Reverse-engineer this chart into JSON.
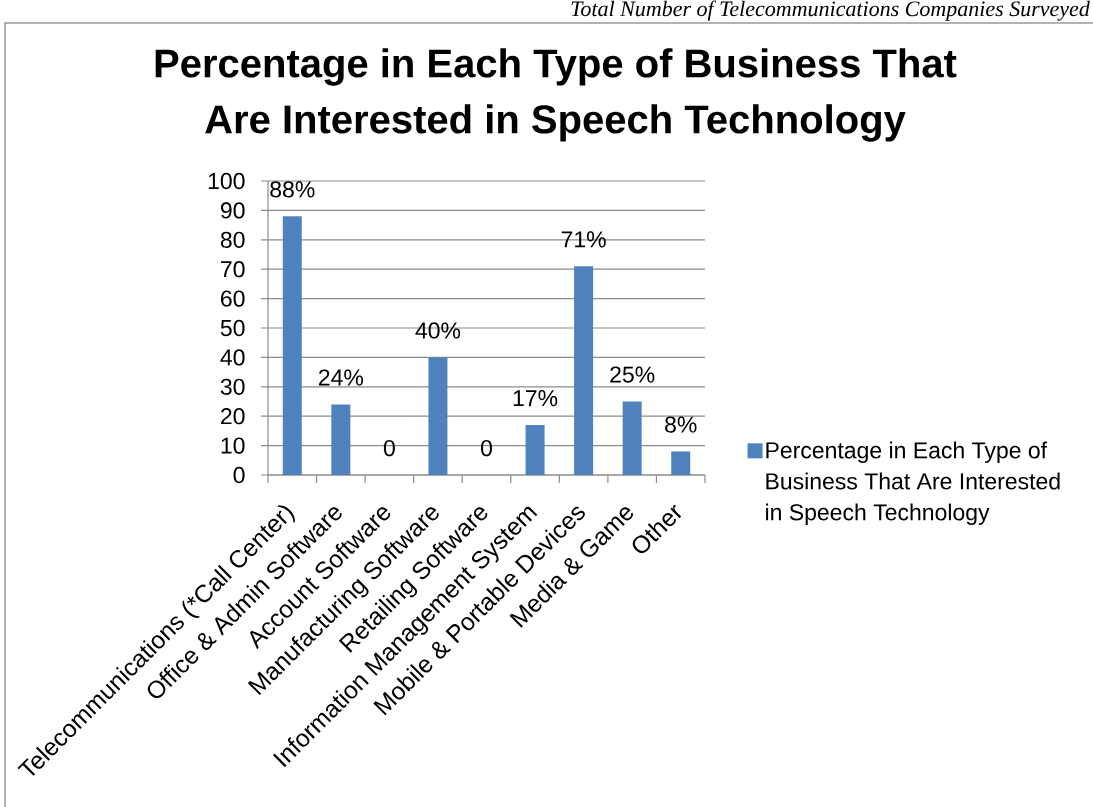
{
  "chart_data": {
    "type": "bar",
    "title": "Percentage in Each Type of Business That Are Interested in Speech Technology",
    "categories": [
      "Telecommunications (*Call Center)",
      "Office & Admin Software",
      "Account Software",
      "Manufacturing Software",
      "Retailing Software",
      "Information Management System",
      "Mobile & Portable Devices",
      "Media & Game",
      "Other"
    ],
    "series": [
      {
        "name": "Percentage in Each Type of Business That Are Interested in Speech Technology",
        "color": "#4f81bd",
        "values": [
          88,
          24,
          0,
          40,
          0,
          17,
          71,
          25,
          8
        ],
        "value_labels": [
          "88%",
          "24%",
          "0",
          "40%",
          "0",
          "17%",
          "71%",
          "25%",
          "8%"
        ]
      }
    ],
    "ylim": [
      0,
      100
    ],
    "yticks": [
      0,
      10,
      20,
      30,
      40,
      50,
      60,
      70,
      80,
      90,
      100
    ],
    "grid": "y",
    "legend": "right",
    "annotations": [
      "Total Number of Telecommunications Companies Surveyed"
    ]
  }
}
